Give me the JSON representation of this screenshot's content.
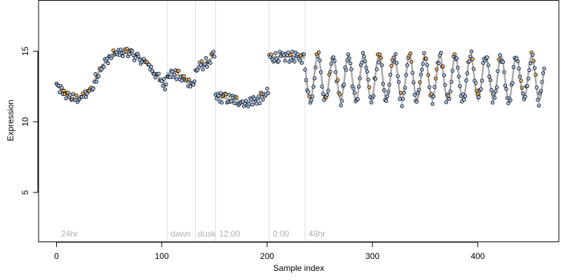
{
  "chart_data": {
    "type": "scatter",
    "title": "",
    "xlabel": "Sample index",
    "ylabel": "Expression",
    "xlim": [
      -17,
      477
    ],
    "ylim": [
      1.5,
      18.6
    ],
    "x_ticks": [
      0,
      100,
      200,
      300,
      400
    ],
    "x_tick_labels": [
      "0",
      "100",
      "200",
      "300",
      "400"
    ],
    "y_ticks": [
      5,
      10,
      15
    ],
    "y_tick_labels": [
      "5",
      "10",
      "15"
    ],
    "grid": false,
    "section_boundaries": [
      105,
      132,
      151,
      202,
      236
    ],
    "section_labels": [
      {
        "text": "24hr",
        "x": 3
      },
      {
        "text": "dawn",
        "x": 107
      },
      {
        "text": "dusk",
        "x": 133
      },
      {
        "text": "12:00",
        "x": 153
      },
      {
        "text": "0:00",
        "x": 204
      },
      {
        "text": "48hr",
        "x": 238
      }
    ],
    "colors": {
      "fit_line": "#aaaaaa",
      "residual_positive": "#e8a33d",
      "residual_negative": "#7fa6d9",
      "point_blue": "#a9c4ec",
      "point_orange": "#f2b257",
      "point_stroke": "#000000",
      "boundary": "#dddddd",
      "section_label": "#b0b0b0"
    },
    "segments": [
      {
        "type": "wave",
        "x0": 0,
        "x1": 36,
        "pts": [
          [
            0,
            12.6
          ],
          [
            8,
            11.9
          ],
          [
            18,
            11.6
          ],
          [
            28,
            11.9
          ],
          [
            36,
            12.5
          ]
        ]
      },
      {
        "type": "wave",
        "x0": 36,
        "x1": 105,
        "pts": [
          [
            36,
            12.9
          ],
          [
            42,
            13.8
          ],
          [
            50,
            14.6
          ],
          [
            60,
            14.9
          ],
          [
            72,
            14.8
          ],
          [
            82,
            14.4
          ],
          [
            92,
            13.6
          ],
          [
            100,
            12.9
          ],
          [
            105,
            12.5
          ]
        ]
      },
      {
        "type": "wave",
        "x0": 105,
        "x1": 132,
        "pts": [
          [
            105,
            13.5
          ],
          [
            115,
            13.3
          ],
          [
            125,
            12.8
          ],
          [
            132,
            12.7
          ]
        ]
      },
      {
        "type": "wave",
        "x0": 132,
        "x1": 151,
        "pts": [
          [
            132,
            13.6
          ],
          [
            138,
            14.0
          ],
          [
            144,
            14.3
          ],
          [
            151,
            14.7
          ]
        ]
      },
      {
        "type": "wave",
        "x0": 151,
        "x1": 202,
        "pts": [
          [
            151,
            11.8
          ],
          [
            165,
            11.6
          ],
          [
            180,
            11.4
          ],
          [
            192,
            11.6
          ],
          [
            202,
            12.1
          ]
        ]
      },
      {
        "type": "wave",
        "x0": 202,
        "x1": 236,
        "pts": [
          [
            202,
            14.6
          ],
          [
            215,
            14.6
          ],
          [
            226,
            14.6
          ],
          [
            236,
            14.5
          ]
        ]
      },
      {
        "type": "sine",
        "x0": 236,
        "x1": 463,
        "mean": 13.1,
        "amp": 1.55,
        "period": 14.5,
        "phase": -6
      }
    ]
  }
}
